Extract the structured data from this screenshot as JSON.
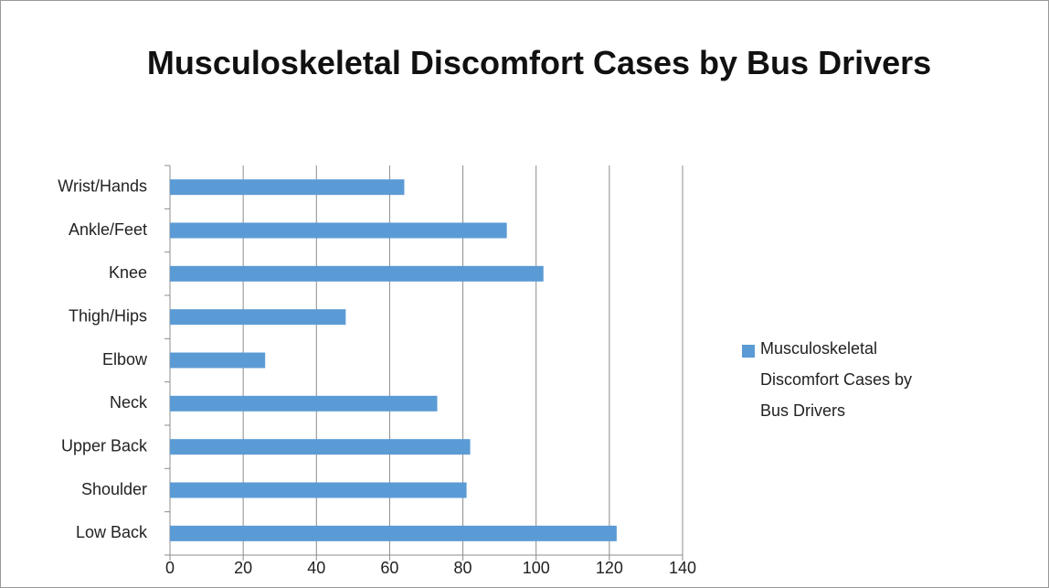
{
  "chart_data": {
    "type": "bar",
    "orientation": "horizontal",
    "title": "Musculoskeletal Discomfort Cases by Bus Drivers",
    "categories": [
      "Low Back",
      "Shoulder",
      "Upper Back",
      "Neck",
      "Elbow",
      "Thigh/Hips",
      "Knee",
      "Ankle/Feet",
      "Wrist/Hands"
    ],
    "series": [
      {
        "name": "Musculoskeletal Discomfort Cases by Bus Drivers",
        "color": "#5b9bd5",
        "values": [
          122,
          81,
          82,
          73,
          26,
          48,
          102,
          92,
          64
        ]
      }
    ],
    "xlim": [
      0,
      140
    ],
    "xticks": [
      0,
      20,
      40,
      60,
      80,
      100,
      120,
      140
    ],
    "grid": true,
    "legend": "right"
  }
}
